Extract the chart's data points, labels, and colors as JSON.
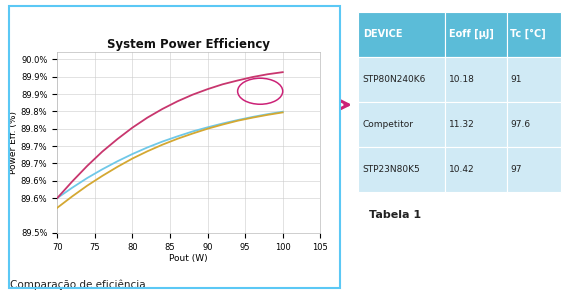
{
  "title": "System Power Efficiency",
  "xlabel": "Pout (W)",
  "ylabel": "Power Eff. (%)",
  "xlim": [
    70,
    105
  ],
  "xticks": [
    70,
    75,
    80,
    85,
    90,
    95,
    100,
    105
  ],
  "yticks": [
    89.5,
    89.6,
    89.65,
    89.7,
    89.75,
    89.8,
    89.85,
    89.9,
    89.95,
    90.0
  ],
  "ytick_labels": [
    "89.5%",
    "89.6%",
    "89.6%",
    "89.7%",
    "89.7%",
    "89.8%",
    "89.8%",
    "89.9%",
    "89.9%",
    "90.0%"
  ],
  "x_data": [
    70,
    72,
    74,
    76,
    78,
    80,
    82,
    84,
    86,
    88,
    90,
    92,
    94,
    96,
    98,
    100
  ],
  "stp23n80k5": [
    89.6,
    89.63,
    89.658,
    89.683,
    89.706,
    89.727,
    89.746,
    89.763,
    89.778,
    89.792,
    89.804,
    89.815,
    89.825,
    89.834,
    89.842,
    89.849
  ],
  "stp80n240k6": [
    89.6,
    89.648,
    89.693,
    89.734,
    89.77,
    89.803,
    89.832,
    89.857,
    89.879,
    89.898,
    89.914,
    89.928,
    89.939,
    89.949,
    89.957,
    89.963
  ],
  "competitor": [
    89.572,
    89.605,
    89.636,
    89.664,
    89.69,
    89.714,
    89.735,
    89.754,
    89.771,
    89.786,
    89.8,
    89.812,
    89.823,
    89.832,
    89.84,
    89.847
  ],
  "color_stp23": "#6FC8E8",
  "color_stp80": "#C8366E",
  "color_competitor": "#D4A832",
  "legend_labels": [
    "STP23N80K5",
    "STP80N240K6",
    "Competitor"
  ],
  "border_color": "#5BC8F5",
  "grid_color": "#CCCCCC",
  "table_header_bg": "#5BBCD8",
  "table_header_text": "#FFFFFF",
  "table_row_bg": "#D0EAF5",
  "table_text_color": "#222222",
  "arrow_color": "#CC2277",
  "ellipse_color": "#CC2277",
  "table_data": [
    [
      "DEVICE",
      "Eoff [μJ]",
      "Tc [°C]"
    ],
    [
      "STP80N240K6",
      "10.18",
      "91"
    ],
    [
      "Competitor",
      "11.32",
      "97.6"
    ],
    [
      "STP23N80K5",
      "10.42",
      "97"
    ]
  ],
  "tabela_label": "Tabela 1",
  "caption": "Comparação de eficiência",
  "title_fontsize": 8.5,
  "axis_fontsize": 6.5,
  "tick_fontsize": 6,
  "legend_fontsize": 6,
  "caption_fontsize": 7.5,
  "table_fontsize": 6.5,
  "table_header_fontsize": 7
}
